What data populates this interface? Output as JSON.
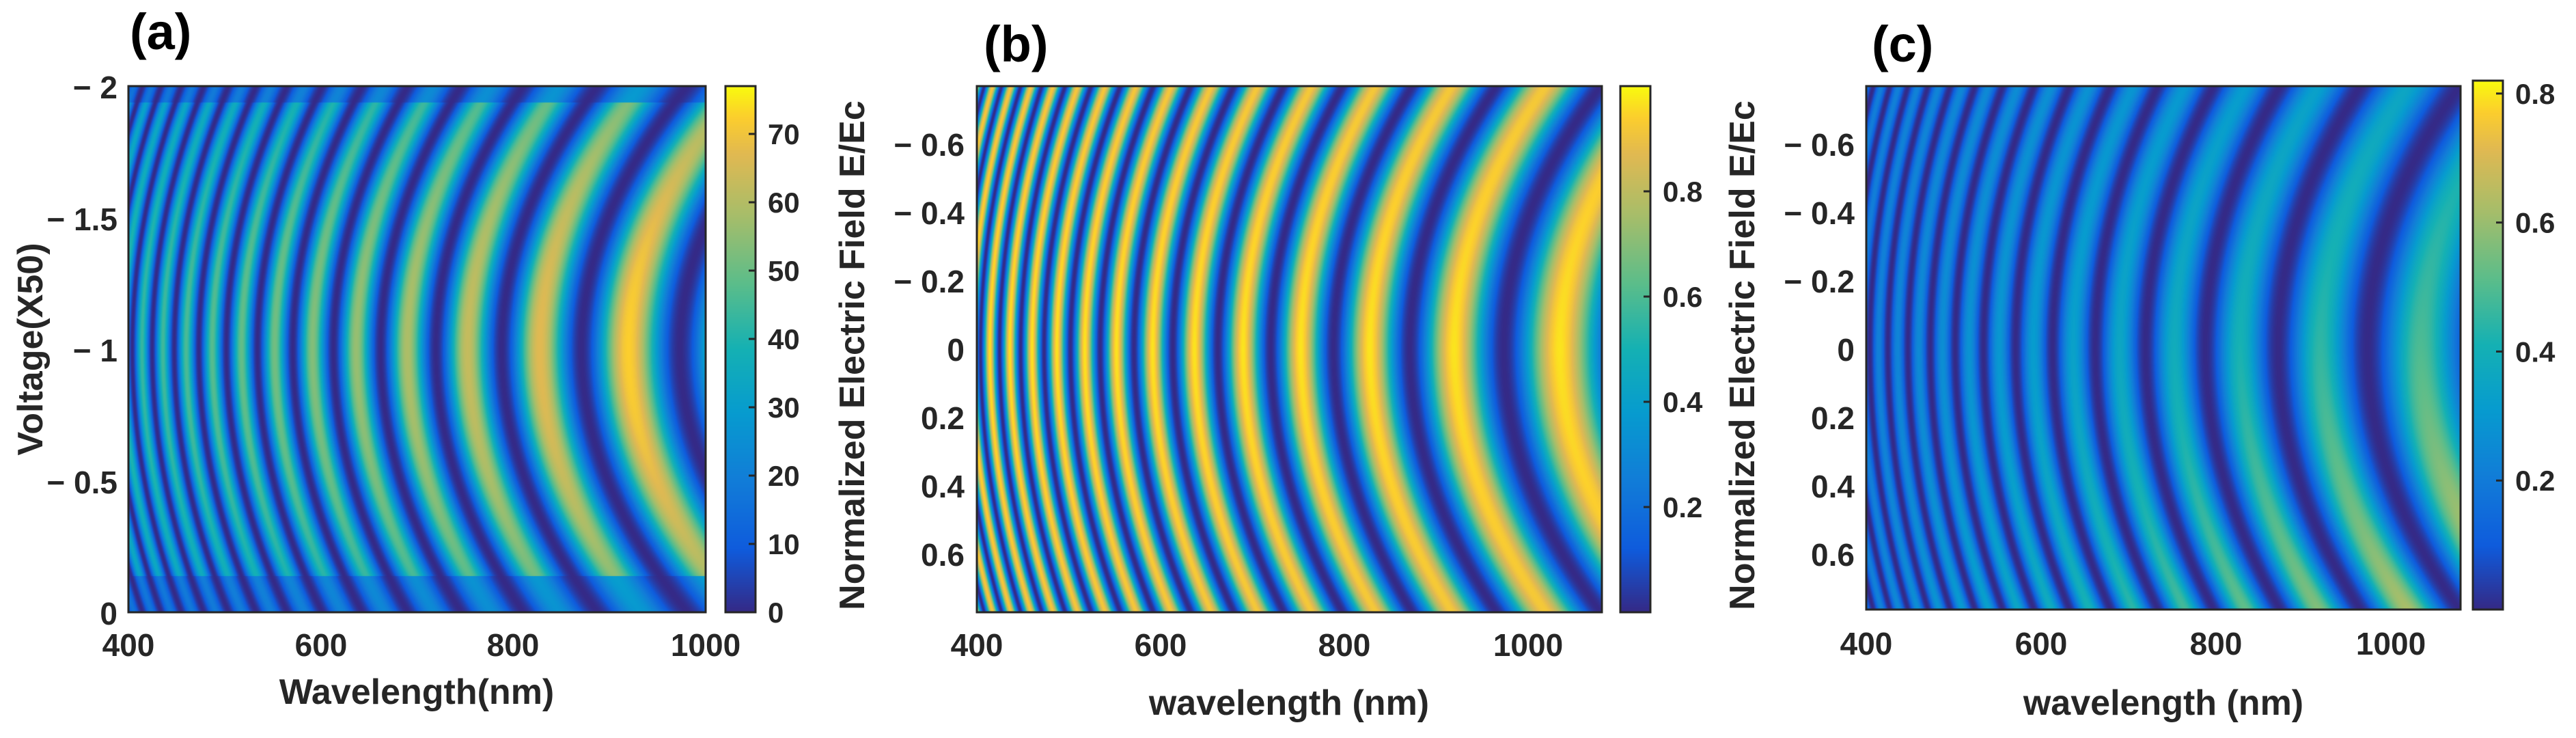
{
  "chart_data": [
    {
      "type": "heatmap",
      "panel_label": "(a)",
      "xlabel": "Wavelength(nm)",
      "ylabel": "Voltage(X50)",
      "xlim": [
        400,
        1000
      ],
      "ylim": [
        -2,
        0
      ],
      "y_reversed": true,
      "xticks": [
        400,
        600,
        800,
        1000
      ],
      "xtick_labels": [
        "400",
        "600",
        "800",
        "1000"
      ],
      "yticks": [
        -2,
        -1.5,
        -1,
        -0.5,
        0
      ],
      "ytick_labels": [
        "− 2",
        "− 1.5",
        "− 1",
        "− 0.5",
        "0"
      ],
      "colorbar": {
        "range": [
          0,
          77
        ],
        "ticks": [
          0,
          10,
          20,
          30,
          40,
          50,
          60,
          70
        ],
        "tick_labels": [
          "0",
          "10",
          "20",
          "30",
          "40",
          "50",
          "60",
          "70"
        ]
      },
      "colormap": "parula",
      "fringe_center": -1,
      "fringe_curvature": 0.7,
      "peak_wavelength": 1000,
      "amplitude_profile": "high across range, brightest near 900-1000 nm around voltage -1"
    },
    {
      "type": "heatmap",
      "panel_label": "(b)",
      "xlabel": "wavelength (nm)",
      "ylabel": "Normalized Electric Field E/Ec",
      "xlim": [
        400,
        1080
      ],
      "ylim": [
        -0.77,
        0.77
      ],
      "y_reversed": true,
      "xticks": [
        400,
        600,
        800,
        1000
      ],
      "xtick_labels": [
        "400",
        "600",
        "800",
        "1000"
      ],
      "yticks": [
        -0.6,
        -0.4,
        -0.2,
        0,
        0.2,
        0.4,
        0.6
      ],
      "ytick_labels": [
        "− 0.6",
        "− 0.4",
        "− 0.2",
        "0",
        "0.2",
        "0.4",
        "0.6"
      ],
      "colorbar": {
        "range": [
          0,
          1
        ],
        "ticks": [
          0.2,
          0.4,
          0.6,
          0.8
        ],
        "tick_labels": [
          "0.2",
          "0.4",
          "0.6",
          "0.8"
        ]
      },
      "colormap": "parula",
      "fringe_center": 0,
      "fringe_curvature": 0.6,
      "peak_wavelength": 1060,
      "amplitude_profile": "near-uniform full-contrast fringes"
    },
    {
      "type": "heatmap",
      "panel_label": "(c)",
      "xlabel": "wavelength (nm)",
      "ylabel": "Normalized Electric Field E/Ec",
      "xlim": [
        400,
        1080
      ],
      "ylim": [
        -0.77,
        0.77
      ],
      "y_reversed": true,
      "xticks": [
        400,
        600,
        800,
        1000
      ],
      "xtick_labels": [
        "400",
        "600",
        "800",
        "1000"
      ],
      "yticks": [
        -0.6,
        -0.4,
        -0.2,
        0,
        0.2,
        0.4,
        0.6
      ],
      "ytick_labels": [
        "− 0.6",
        "− 0.4",
        "− 0.2",
        "0",
        "0.2",
        "0.4",
        "0.6"
      ],
      "colorbar": {
        "range": [
          0,
          0.82
        ],
        "ticks": [
          0.2,
          0.4,
          0.6,
          0.8
        ],
        "tick_labels": [
          "0.2",
          "0.4",
          "0.6",
          "0.8"
        ]
      },
      "colormap": "parula",
      "fringe_center": 0,
      "fringe_curvature": 0.6,
      "peak_wavelength": 1060,
      "amplitude_profile": "asymmetric; strongest at long wavelength and positive field (bottom-right)"
    }
  ]
}
